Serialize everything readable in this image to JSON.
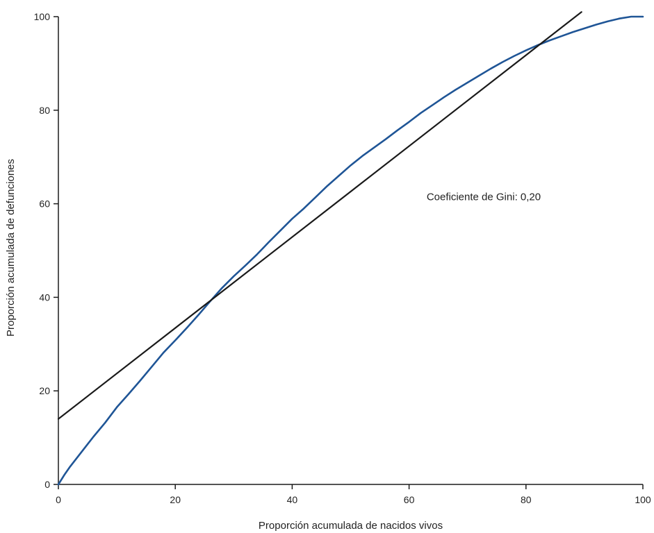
{
  "chart_data": {
    "type": "line",
    "title": "",
    "xlabel": "Proporción acumulada de nacidos vivos",
    "ylabel": "Proporción acumulada de defunciones",
    "xlim": [
      0,
      100
    ],
    "ylim": [
      0,
      100
    ],
    "xticks": [
      "0",
      "20",
      "40",
      "60",
      "80",
      "100"
    ],
    "yticks": [
      "0",
      "20",
      "40",
      "60",
      "80",
      "100"
    ],
    "xtick_values": [
      0,
      20,
      40,
      60,
      80,
      100
    ],
    "ytick_values": [
      0,
      20,
      40,
      60,
      80,
      100
    ],
    "grid": false,
    "annotation": {
      "text": "Coeficiente de Gini: 0,20",
      "x": 63,
      "y": 61.5
    },
    "series": [
      {
        "color": "#1f5596",
        "x": [
          0,
          1,
          2,
          4,
          6,
          8,
          10,
          12,
          14,
          16,
          18,
          20,
          22,
          24,
          26,
          28,
          30,
          32,
          34,
          36,
          38,
          40,
          42,
          44,
          46,
          48,
          50,
          52,
          54,
          56,
          58,
          60,
          62,
          64,
          66,
          68,
          70,
          72,
          74,
          76,
          78,
          80,
          82,
          84,
          86,
          88,
          90,
          92,
          94,
          96,
          98,
          100
        ],
        "y": [
          0,
          2,
          3.8,
          7,
          10.2,
          13.2,
          16.5,
          19.3,
          22.2,
          25.2,
          28.2,
          30.8,
          33.5,
          36.3,
          39.2,
          42.0,
          44.5,
          46.8,
          49.2,
          51.8,
          54.3,
          56.8,
          59.0,
          61.4,
          63.8,
          66.0,
          68.2,
          70.2,
          72.0,
          73.8,
          75.7,
          77.5,
          79.4,
          81.1,
          82.8,
          84.4,
          85.9,
          87.4,
          88.9,
          90.3,
          91.6,
          92.8,
          93.9,
          94.9,
          95.8,
          96.7,
          97.5,
          98.3,
          99.0,
          99.6,
          100.0,
          100.0
        ]
      },
      {
        "color": "#1a1a1a",
        "x": [
          0,
          89.5
        ],
        "y": [
          14,
          101
        ]
      }
    ]
  }
}
